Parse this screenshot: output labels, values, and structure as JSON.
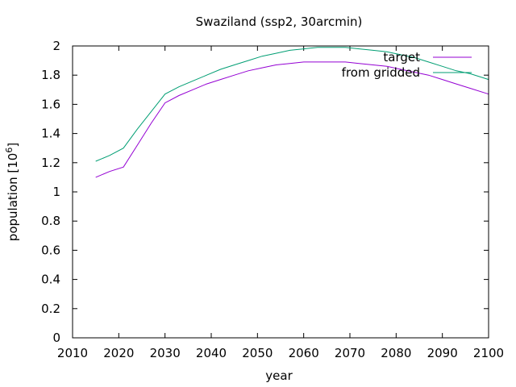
{
  "chart_data": {
    "type": "line",
    "title": "Swaziland (ssp2, 30arcmin)",
    "xlabel": "year",
    "ylabel_text": "population [10",
    "ylabel_exp": "6",
    "ylabel_close": "]",
    "xlim": [
      2010,
      2100
    ],
    "ylim": [
      0,
      2
    ],
    "xticks": [
      2010,
      2020,
      2030,
      2040,
      2050,
      2060,
      2070,
      2080,
      2090,
      2100
    ],
    "yticks": [
      0,
      0.2,
      0.4,
      0.6,
      0.8,
      1,
      1.2,
      1.4,
      1.6,
      1.8,
      2
    ],
    "ytick_labels": [
      "0",
      "0.2",
      "0.4",
      "0.6",
      "0.8",
      "1",
      "1.2",
      "1.4",
      "1.6",
      "1.8",
      "2"
    ],
    "legend_position": "top-right",
    "series": [
      {
        "name": "target",
        "color": "#9400d3",
        "x": [
          2015,
          2018,
          2021,
          2024,
          2027,
          2030,
          2033,
          2036,
          2039,
          2042,
          2045,
          2048,
          2051,
          2054,
          2057,
          2060,
          2063,
          2066,
          2069,
          2072,
          2075,
          2078,
          2081,
          2084,
          2087,
          2090,
          2093,
          2096,
          2100
        ],
        "values": [
          1.1,
          1.14,
          1.17,
          1.32,
          1.47,
          1.61,
          1.66,
          1.7,
          1.74,
          1.77,
          1.8,
          1.83,
          1.85,
          1.87,
          1.88,
          1.89,
          1.89,
          1.89,
          1.89,
          1.88,
          1.87,
          1.86,
          1.84,
          1.82,
          1.8,
          1.77,
          1.74,
          1.71,
          1.67
        ]
      },
      {
        "name": "from gridded",
        "color": "#009e73",
        "x": [
          2015,
          2018,
          2021,
          2024,
          2027,
          2030,
          2033,
          2036,
          2039,
          2042,
          2045,
          2048,
          2051,
          2054,
          2057,
          2060,
          2063,
          2066,
          2069,
          2072,
          2075,
          2078,
          2081,
          2084,
          2087,
          2090,
          2093,
          2096,
          2100
        ],
        "values": [
          1.21,
          1.25,
          1.3,
          1.43,
          1.55,
          1.67,
          1.72,
          1.76,
          1.8,
          1.84,
          1.87,
          1.9,
          1.93,
          1.95,
          1.97,
          1.98,
          1.99,
          1.99,
          1.99,
          1.98,
          1.97,
          1.96,
          1.94,
          1.92,
          1.89,
          1.86,
          1.83,
          1.81,
          1.77
        ]
      }
    ]
  }
}
